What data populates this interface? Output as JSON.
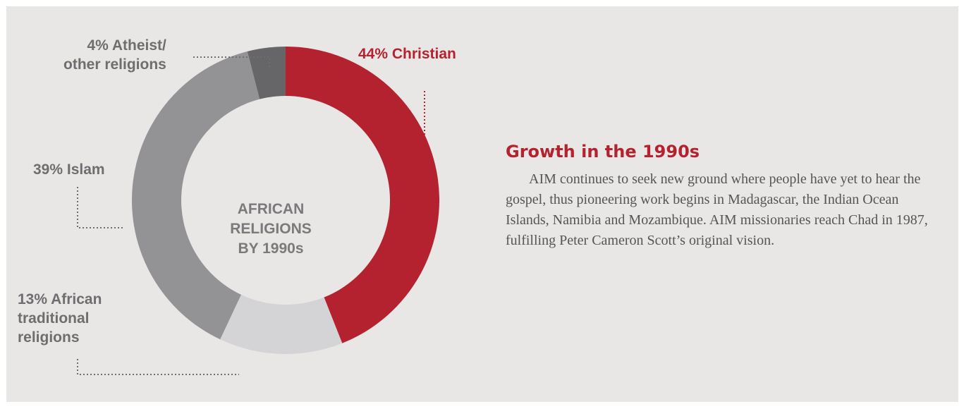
{
  "chart_data": {
    "type": "pie",
    "title": "AFRICAN RELIGIONS BY 1990s",
    "title_lines": [
      "AFRICAN",
      "RELIGIONS",
      "BY 1990s"
    ],
    "slices": [
      {
        "label": "44% Christian",
        "lines": [
          "44% Christian"
        ],
        "value": 44,
        "color": "#b5222f"
      },
      {
        "label": "13% African traditional religions",
        "lines": [
          "13% African",
          "traditional",
          "religions"
        ],
        "value": 13,
        "color": "#d4d4d6"
      },
      {
        "label": "39% Islam",
        "lines": [
          "39% Islam"
        ],
        "value": 39,
        "color": "#939396"
      },
      {
        "label": "4% Atheist/ other religions",
        "lines": [
          "4% Atheist/",
          "other religions"
        ],
        "value": 4,
        "color": "#666668"
      }
    ]
  },
  "text_block": {
    "heading": "Growth in the 1990s",
    "body": "AIM continues to seek new ground where people have yet to hear the gospel, thus pioneering work begins in Madagascar, the Indian Ocean Islands, Namibia and Mozambique. AIM missionaries reach Chad in 1987, fulfilling Peter Cameron Scott’s original vision."
  }
}
